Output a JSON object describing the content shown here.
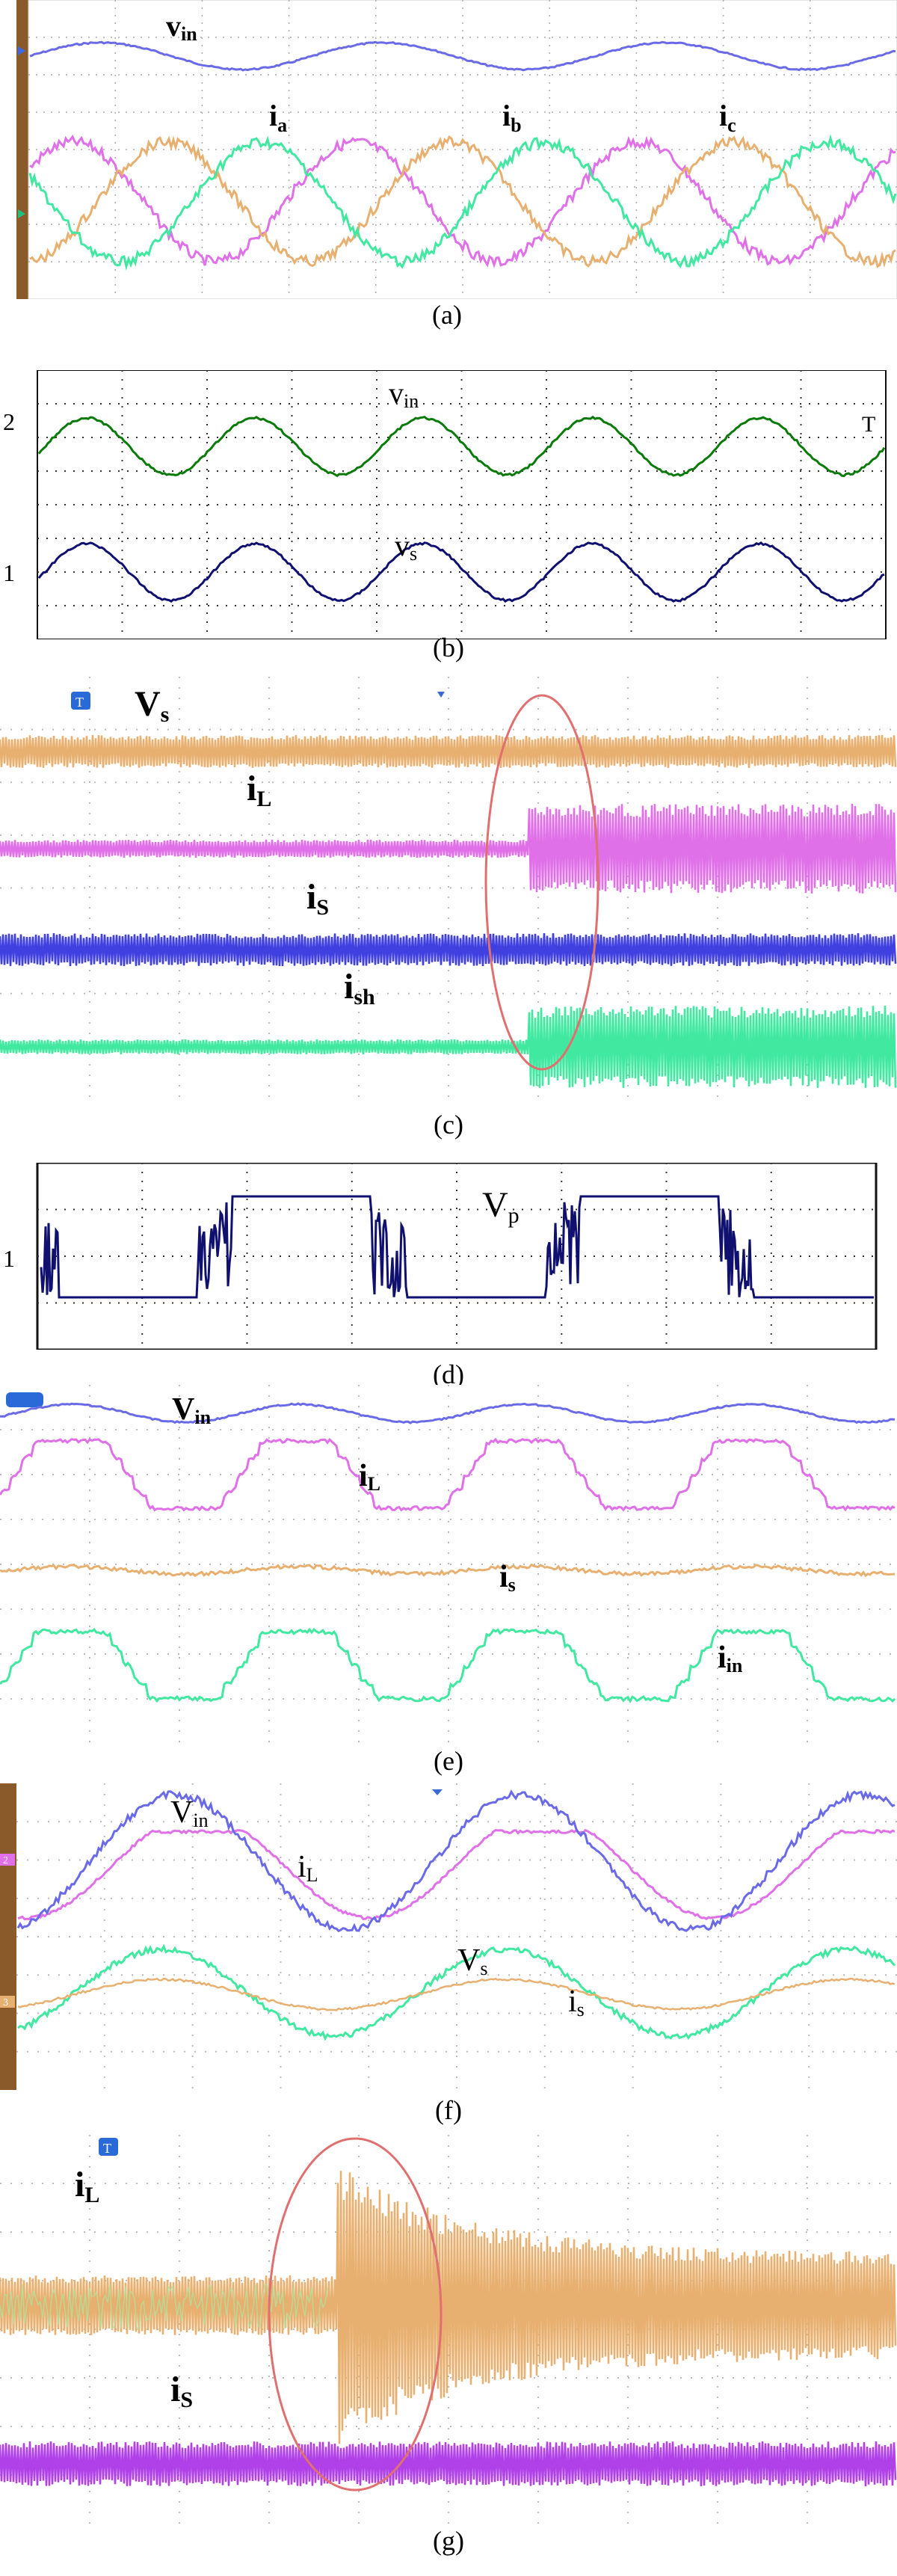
{
  "colors": {
    "blue": "#6a6ae8",
    "magenta": "#e070e8",
    "green": "#40e8a0",
    "orange": "#e8b070",
    "dark_green": "#0a7a0a",
    "navy": "#101070",
    "ellipse": "#e07070",
    "brown": "#8b5a2b"
  },
  "panels": {
    "a": {
      "caption": "(a)",
      "labels": {
        "vin_main": "v",
        "vin_sub": "in",
        "ia_main": "i",
        "ia_sub": "a",
        "ib_main": "i",
        "ib_sub": "b",
        "ic_main": "i",
        "ic_sub": "c"
      }
    },
    "b": {
      "caption": "(b)",
      "labels": {
        "ch2": "2",
        "ch1": "1",
        "vin_main": "v",
        "vin_sub": "in",
        "vs_main": "v",
        "vs_sub": "s",
        "trig": "T"
      }
    },
    "c": {
      "caption": "(c)",
      "labels": {
        "vs_main": "V",
        "vs_sub": "s",
        "il_main": "i",
        "il_sub": "L",
        "is_main": "i",
        "is_sub": "S",
        "ish_main": "i",
        "ish_sub": "sh"
      }
    },
    "d": {
      "caption": "(d)",
      "labels": {
        "ch1": "1",
        "vp_main": "V",
        "vp_sub": "p"
      }
    },
    "e": {
      "caption": "(e)",
      "labels": {
        "vin_main": "V",
        "vin_sub": "in",
        "il_main": "i",
        "il_sub": "L",
        "is_main": "i",
        "is_sub": "s",
        "iin_main": "i",
        "iin_sub": "in"
      }
    },
    "f": {
      "caption": "(f)",
      "labels": {
        "vin_main": "V",
        "vin_sub": "in",
        "il_main": "i",
        "il_sub": "L",
        "vs_main": "V",
        "vs_sub": "s",
        "is_main": "i",
        "is_sub": "s",
        "ch2": "2",
        "ch3": "3"
      }
    },
    "g": {
      "caption": "(g)",
      "labels": {
        "il_main": "i",
        "il_sub": "L",
        "is_main": "i",
        "is_sub": "S"
      }
    }
  }
}
